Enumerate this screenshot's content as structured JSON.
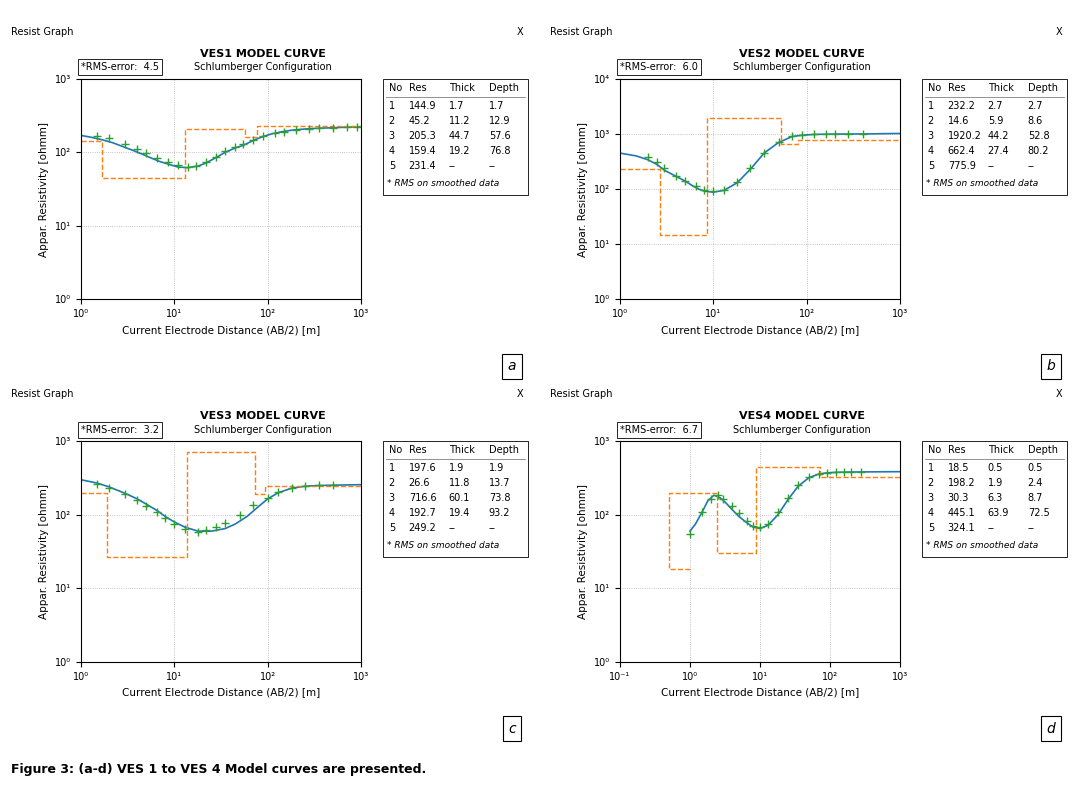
{
  "caption": "Figure 3: (a-d) VES 1 to VES 4 Model curves are presented.",
  "chart_data": [
    {
      "type": "line",
      "title": "VES1 MODEL CURVE",
      "subtitle": "Schlumberger Configuration",
      "xlabel": "Current Electrode Distance (AB/2) [m]",
      "ylabel": "Appar. Resistivity [ohmm]",
      "log": true,
      "grid": true,
      "xlim": [
        1.0,
        1000.0
      ],
      "ylim": [
        1.0,
        1000.0
      ],
      "xticks": [
        {
          "value": 1,
          "label": "10⁰"
        },
        {
          "value": 10,
          "label": "10¹"
        },
        {
          "value": 100,
          "label": "10²"
        },
        {
          "value": 1000,
          "label": "10³"
        }
      ],
      "yticks": [
        {
          "value": 1,
          "label": "10⁰"
        },
        {
          "value": 10,
          "label": "10¹"
        },
        {
          "value": 100,
          "label": "10²"
        },
        {
          "value": 1000,
          "label": "10³"
        }
      ],
      "series": [
        {
          "type": "line",
          "line_style": "solid",
          "x": [
            1.0,
            1.3,
            1.7,
            2.2,
            2.8,
            3.5,
            4.5,
            5.5,
            7.0,
            9.0,
            11.0,
            14.0,
            18.0,
            22.0,
            28.0,
            35.0,
            45.0,
            55.0,
            70.0,
            90.0,
            110.0,
            140.0,
            180.0,
            220.0,
            280.0,
            350.0,
            450.0,
            550.0,
            700.0,
            900.0,
            1000.0
          ],
          "values": [
            170.0,
            160.0,
            148.0,
            135.0,
            120.0,
            108.0,
            95.0,
            85.0,
            75.0,
            68.0,
            63.0,
            62.0,
            65.0,
            72.0,
            85.0,
            100.0,
            115.0,
            125.0,
            145.0,
            165.0,
            178.0,
            190.0,
            200.0,
            205.0,
            210.0,
            213.0,
            215.0,
            217.0,
            220.0,
            222.0,
            223.0
          ]
        },
        {
          "type": "step",
          "line_style": "dashed",
          "x": [
            1.0,
            1.7,
            1.7,
            12.9,
            12.9,
            57.6,
            57.6,
            76.8,
            76.8,
            1000.0
          ],
          "values": [
            144.9,
            144.9,
            45.2,
            45.2,
            205.3,
            205.3,
            159.4,
            159.4,
            231.4,
            231.4
          ]
        },
        {
          "type": "scatter",
          "marker": "plus",
          "x": [
            1.5,
            2.0,
            3.0,
            4.0,
            5.0,
            6.5,
            8.5,
            11.0,
            14.0,
            17.0,
            22.0,
            28.0,
            35.0,
            45.0,
            55.0,
            70.0,
            90.0,
            120.0,
            150.0,
            200.0,
            280.0,
            350.0,
            500.0,
            700.0,
            900.0
          ],
          "values": [
            168.0,
            155.0,
            130.0,
            112.0,
            97.0,
            84.0,
            74.0,
            67.0,
            64.0,
            66.0,
            73.0,
            87.0,
            103.0,
            118.0,
            128.0,
            148.0,
            168.0,
            182.0,
            192.0,
            202.0,
            210.0,
            213.0,
            217.0,
            220.0,
            222.0
          ]
        }
      ],
      "rms_error": "*RMS-error:  4.5",
      "table": {
        "headers": [
          "No",
          "Res",
          "Thick",
          "Depth"
        ],
        "rows": [
          [
            "1",
            "144.9",
            "1.7",
            "1.7"
          ],
          [
            "2",
            "45.2",
            "11.2",
            "12.9"
          ],
          [
            "3",
            "205.3",
            "44.7",
            "57.6"
          ],
          [
            "4",
            "159.4",
            "19.2",
            "76.8"
          ],
          [
            "5",
            "231.4",
            "--",
            "--"
          ]
        ]
      },
      "table_note": "* RMS on smoothed data",
      "window_title": "Resist Graph",
      "window_close": "X",
      "panel_label": "a"
    },
    {
      "type": "line",
      "title": "VES2 MODEL CURVE",
      "subtitle": "Schlumberger Configuration",
      "xlabel": "Current Electrode Distance (AB/2) [m]",
      "ylabel": "Appar. Resistivity [ohmm]",
      "log": true,
      "grid": true,
      "xlim": [
        1.0,
        1000.0
      ],
      "ylim": [
        1.0,
        10000.0
      ],
      "xticks": [
        {
          "value": 1,
          "label": "10⁰"
        },
        {
          "value": 10,
          "label": "10¹"
        },
        {
          "value": 100,
          "label": "10²"
        },
        {
          "value": 1000,
          "label": "10³"
        }
      ],
      "yticks": [
        {
          "value": 1,
          "label": "10⁰"
        },
        {
          "value": 10,
          "label": "10¹"
        },
        {
          "value": 100,
          "label": "10²"
        },
        {
          "value": 1000,
          "label": "10³"
        },
        {
          "value": 10000,
          "label": "10⁴"
        }
      ],
      "series": [
        {
          "type": "line",
          "line_style": "solid",
          "x": [
            1.0,
            1.5,
            2.0,
            2.5,
            3.0,
            4.0,
            5.0,
            6.0,
            7.0,
            8.0,
            10.0,
            13.0,
            18.0,
            25.0,
            35.0,
            50.0,
            70.0,
            90.0,
            120.0,
            160.0,
            200.0,
            280.0,
            400.0,
            600.0,
            1000.0
          ],
          "values": [
            450.0,
            400.0,
            340.0,
            280.0,
            220.0,
            170.0,
            140.0,
            115.0,
            100.0,
            92.0,
            88.0,
            95.0,
            130.0,
            230.0,
            450.0,
            700.0,
            900.0,
            950.0,
            980.0,
            990.0,
            995.0,
            998.0,
            1000.0,
            1010.0,
            1020.0
          ]
        },
        {
          "type": "step",
          "line_style": "dashed",
          "x": [
            1.0,
            2.7,
            2.7,
            8.6,
            8.6,
            52.8,
            52.8,
            80.2,
            80.2,
            1000.0
          ],
          "values": [
            232.2,
            232.2,
            14.6,
            14.6,
            1920.2,
            1920.2,
            662.4,
            662.4,
            775.9,
            775.9
          ]
        },
        {
          "type": "scatter",
          "marker": "plus",
          "x": [
            2.0,
            2.5,
            3.0,
            4.0,
            5.0,
            6.5,
            8.0,
            10.0,
            13.0,
            18.0,
            25.0,
            35.0,
            50.0,
            70.0,
            90.0,
            120.0,
            160.0,
            200.0,
            280.0,
            400.0
          ],
          "values": [
            390.0,
            310.0,
            240.0,
            175.0,
            143.0,
            115.0,
            98.0,
            92.0,
            95.0,
            135.0,
            240.0,
            460.0,
            710.0,
            905.0,
            955.0,
            982.0,
            992.0,
            996.0,
            1000.0,
            1010.0
          ]
        }
      ],
      "rms_error": "*RMS-error:  6.0",
      "table": {
        "headers": [
          "No",
          "Res",
          "Thick",
          "Depth"
        ],
        "rows": [
          [
            "1",
            "232.2",
            "2.7",
            "2.7"
          ],
          [
            "2",
            "14.6",
            "5.9",
            "8.6"
          ],
          [
            "3",
            "1920.2",
            "44.2",
            "52.8"
          ],
          [
            "4",
            "662.4",
            "27.4",
            "80.2"
          ],
          [
            "5",
            "775.9",
            "--",
            "--"
          ]
        ]
      },
      "table_note": "* RMS on smoothed data",
      "window_title": "Resist Graph",
      "window_close": "X",
      "panel_label": "b"
    },
    {
      "type": "line",
      "title": "VES3 MODEL CURVE",
      "subtitle": "Schlumberger Configuration",
      "xlabel": "Current Electrode Distance (AB/2) [m]",
      "ylabel": "Appar. Resistivity [ohmm]",
      "log": true,
      "grid": true,
      "xlim": [
        1.0,
        1000.0
      ],
      "ylim": [
        1.0,
        1000.0
      ],
      "xticks": [
        {
          "value": 1,
          "label": "10⁰"
        },
        {
          "value": 10,
          "label": "10¹"
        },
        {
          "value": 100,
          "label": "10²"
        },
        {
          "value": 1000,
          "label": "10³"
        }
      ],
      "yticks": [
        {
          "value": 1,
          "label": "10⁰"
        },
        {
          "value": 10,
          "label": "10¹"
        },
        {
          "value": 100,
          "label": "10²"
        },
        {
          "value": 1000,
          "label": "10³"
        }
      ],
      "series": [
        {
          "type": "line",
          "line_style": "solid",
          "x": [
            1.0,
            1.5,
            2.0,
            3.0,
            4.0,
            5.0,
            6.5,
            8.0,
            10.0,
            13.0,
            18.0,
            25.0,
            35.0,
            45.0,
            60.0,
            80.0,
            100.0,
            130.0,
            180.0,
            250.0,
            350.0,
            500.0,
            700.0,
            1000.0
          ],
          "values": [
            300.0,
            270.0,
            240.0,
            195.0,
            165.0,
            140.0,
            115.0,
            95.0,
            80.0,
            68.0,
            60.0,
            60.0,
            65.0,
            75.0,
            95.0,
            130.0,
            165.0,
            200.0,
            230.0,
            245.0,
            250.0,
            253.0,
            255.0,
            257.0
          ]
        },
        {
          "type": "step",
          "line_style": "dashed",
          "x": [
            1.0,
            1.9,
            1.9,
            13.7,
            13.7,
            73.8,
            73.8,
            93.2,
            93.2,
            1000.0
          ],
          "values": [
            197.6,
            197.6,
            26.6,
            26.6,
            716.6,
            716.6,
            192.7,
            192.7,
            249.2,
            249.2
          ]
        },
        {
          "type": "scatter",
          "marker": "plus",
          "x": [
            1.5,
            2.0,
            3.0,
            4.0,
            5.0,
            6.5,
            8.0,
            10.0,
            13.0,
            18.0,
            22.0,
            28.0,
            35.0,
            50.0,
            70.0,
            100.0,
            130.0,
            180.0,
            250.0,
            350.0,
            500.0
          ],
          "values": [
            265.0,
            230.0,
            190.0,
            160.0,
            133.0,
            108.0,
            90.0,
            74.0,
            64.0,
            59.0,
            62.0,
            68.0,
            78.0,
            100.0,
            138.0,
            172.0,
            205.0,
            232.0,
            247.0,
            252.0,
            255.0
          ]
        }
      ],
      "rms_error": "*RMS-error:  3.2",
      "table": {
        "headers": [
          "No",
          "Res",
          "Thick",
          "Depth"
        ],
        "rows": [
          [
            "1",
            "197.6",
            "1.9",
            "1.9"
          ],
          [
            "2",
            "26.6",
            "11.8",
            "13.7"
          ],
          [
            "3",
            "716.6",
            "60.1",
            "73.8"
          ],
          [
            "4",
            "192.7",
            "19.4",
            "93.2"
          ],
          [
            "5",
            "249.2",
            "--",
            "--"
          ]
        ]
      },
      "table_note": "* RMS on smoothed data",
      "window_title": "Resist Graph",
      "window_close": "X",
      "panel_label": "c"
    },
    {
      "type": "line",
      "title": "VES4 MODEL CURVE",
      "subtitle": "Schlumberger Configuration",
      "xlabel": "Current Electrode Distance (AB/2) [m]",
      "ylabel": "Appar. Resistivity [ohmm]",
      "log": true,
      "grid": true,
      "xlim": [
        0.1,
        1000.0
      ],
      "ylim": [
        1.0,
        1000.0
      ],
      "xticks": [
        {
          "value": 0.1,
          "label": "10⁻¹"
        },
        {
          "value": 1,
          "label": "10⁰"
        },
        {
          "value": 10,
          "label": "10¹"
        },
        {
          "value": 100,
          "label": "10²"
        },
        {
          "value": 1000,
          "label": "10³"
        }
      ],
      "yticks": [
        {
          "value": 1,
          "label": "10⁰"
        },
        {
          "value": 10,
          "label": "10¹"
        },
        {
          "value": 100,
          "label": "10²"
        },
        {
          "value": 1000,
          "label": "10³"
        }
      ],
      "series": [
        {
          "type": "line",
          "line_style": "solid",
          "x": [
            1.0,
            1.2,
            1.5,
            1.8,
            2.2,
            2.7,
            3.2,
            4.0,
            5.0,
            6.5,
            8.0,
            10.0,
            13.0,
            18.0,
            25.0,
            35.0,
            50.0,
            70.0,
            90.0,
            120.0,
            160.0,
            200.0,
            280.0,
            400.0,
            600.0,
            1000.0
          ],
          "values": [
            60.0,
            75.0,
            110.0,
            155.0,
            185.0,
            170.0,
            148.0,
            118.0,
            95.0,
            78.0,
            68.0,
            65.0,
            72.0,
            100.0,
            160.0,
            245.0,
            320.0,
            360.0,
            372.0,
            378.0,
            381.0,
            382.0,
            383.0,
            384.0,
            385.0,
            386.0
          ]
        },
        {
          "type": "step",
          "line_style": "dashed",
          "x": [
            1.0,
            0.5,
            0.5,
            2.4,
            2.4,
            8.7,
            8.7,
            72.5,
            72.5,
            1000.0
          ],
          "values": [
            18.5,
            18.5,
            198.2,
            198.2,
            30.3,
            30.3,
            445.1,
            445.1,
            324.1,
            324.1
          ]
        },
        {
          "type": "scatter",
          "marker": "plus",
          "x": [
            1.0,
            1.5,
            2.0,
            2.5,
            3.0,
            4.0,
            5.0,
            6.5,
            8.0,
            10.0,
            13.0,
            18.0,
            25.0,
            35.0,
            50.0,
            70.0,
            90.0,
            120.0,
            160.0,
            200.0,
            280.0
          ],
          "values": [
            55.0,
            108.0,
            162.0,
            188.0,
            165.0,
            130.0,
            105.0,
            82.0,
            70.0,
            68.0,
            76.0,
            108.0,
            168.0,
            255.0,
            328.0,
            362.0,
            374.0,
            379.0,
            382.0,
            383.0,
            384.0
          ]
        }
      ],
      "rms_error": "*RMS-error:  6.7",
      "table": {
        "headers": [
          "No",
          "Res",
          "Thick",
          "Depth"
        ],
        "rows": [
          [
            "1",
            "18.5",
            "0.5",
            "0.5"
          ],
          [
            "2",
            "198.2",
            "1.9",
            "2.4"
          ],
          [
            "3",
            "30.3",
            "6.3",
            "8.7"
          ],
          [
            "4",
            "445.1",
            "63.9",
            "72.5"
          ],
          [
            "5",
            "324.1",
            "--",
            "--"
          ]
        ]
      },
      "table_note": "* RMS on smoothed data",
      "window_title": "Resist Graph",
      "window_close": "X",
      "panel_label": "d"
    }
  ]
}
